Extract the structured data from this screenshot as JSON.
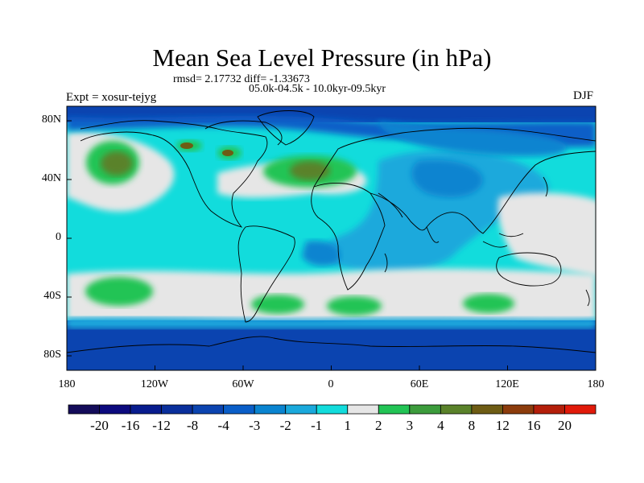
{
  "title": "Mean Sea Level Pressure (in hPa)",
  "stats": "rmsd= 2.17732 diff= -1.33673",
  "period": "05.0k-04.5k - 10.0kyr-09.5kyr",
  "experiment": "Expt = xosur-tejyg",
  "season": "DJF",
  "chart_data": {
    "type": "heatmap",
    "projection": "cylindrical equidistant",
    "variable": "Mean Sea Level Pressure difference",
    "units": "hPa",
    "x_range": [
      -180,
      180
    ],
    "y_range": [
      -90,
      90
    ],
    "lon_ticks": [
      {
        "value": -180,
        "label": "180"
      },
      {
        "value": -120,
        "label": "120W"
      },
      {
        "value": -60,
        "label": "60W"
      },
      {
        "value": 0,
        "label": "0"
      },
      {
        "value": 60,
        "label": "60E"
      },
      {
        "value": 120,
        "label": "120E"
      },
      {
        "value": 180,
        "label": "180"
      }
    ],
    "lat_ticks": [
      {
        "value": 80,
        "label": "80N"
      },
      {
        "value": 40,
        "label": "40N"
      },
      {
        "value": 0,
        "label": "0"
      },
      {
        "value": -40,
        "label": "40S"
      },
      {
        "value": -80,
        "label": "80S"
      }
    ],
    "colorbar": {
      "levels": [
        "-20",
        "-16",
        "-12",
        "-8",
        "-4",
        "-3",
        "-2",
        "-1",
        "1",
        "2",
        "3",
        "4",
        "8",
        "12",
        "16",
        "20"
      ],
      "colors": [
        "#140c5a",
        "#0c0a7e",
        "#081c8e",
        "#0a2f9c",
        "#0b44b0",
        "#0a5ec8",
        "#0a84d0",
        "#1aa9dc",
        "#12dcdc",
        "#e6e6e6",
        "#22c455",
        "#3c9c3c",
        "#5a822a",
        "#6e5c14",
        "#8c3c0c",
        "#b41e0a",
        "#e11a0a"
      ]
    },
    "regions": [
      {
        "name": "global background",
        "value_class": "-2..-1",
        "lon": [
          -180,
          180
        ],
        "lat": [
          -90,
          90
        ]
      },
      {
        "name": "southern ocean belt",
        "value_class": "-1..1",
        "lon": [
          -180,
          180
        ],
        "lat": [
          -58,
          -32
        ]
      },
      {
        "name": "antarctic low",
        "value_class": "-4..-3",
        "lon": [
          -180,
          180
        ],
        "lat": [
          -90,
          -60
        ]
      },
      {
        "name": "arctic low",
        "value_class": "-4..-3",
        "lon": [
          -180,
          180
        ],
        "lat": [
          70,
          90
        ]
      },
      {
        "name": "north pacific high",
        "value_class": "2..3",
        "center": [
          -145,
          49
        ]
      },
      {
        "name": "north pacific high core",
        "value_class": "3..4",
        "center": [
          -147,
          50
        ]
      },
      {
        "name": "north atlantic high",
        "value_class": "2..3",
        "center": [
          -20,
          43
        ]
      },
      {
        "name": "north atlantic high core",
        "value_class": "3..4",
        "center": [
          -18,
          44
        ]
      },
      {
        "name": "canada highs",
        "value_class": "3..4",
        "center": [
          -90,
          60
        ]
      },
      {
        "name": "south pacific high",
        "value_class": "1..2",
        "center": [
          -145,
          -36
        ]
      },
      {
        "name": "south atlantic high",
        "value_class": "1..2",
        "center": [
          -35,
          -44
        ]
      },
      {
        "name": "south indian high",
        "value_class": "1..2",
        "center": [
          20,
          -44
        ]
      },
      {
        "name": "south indian east high",
        "value_class": "1..2",
        "center": [
          90,
          -44
        ]
      },
      {
        "name": "asia low",
        "value_class": "-3..-2",
        "center": [
          90,
          35
        ]
      },
      {
        "name": "indian ocean low",
        "value_class": "-3..-2",
        "center": [
          75,
          -5
        ]
      },
      {
        "name": "west pacific neutral",
        "value_class": "-1..1",
        "center": [
          150,
          15
        ]
      }
    ]
  }
}
